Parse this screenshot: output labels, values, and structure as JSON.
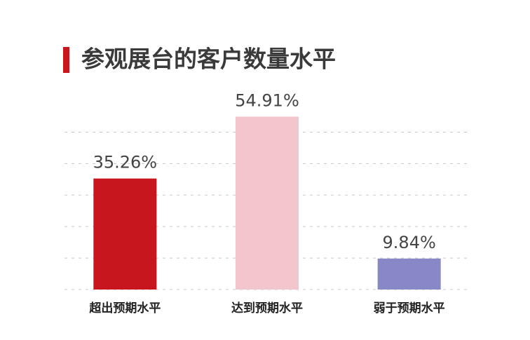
{
  "chart_data": {
    "type": "bar",
    "title": "参观展台的客户数量水平",
    "categories": [
      "超出预期水平",
      "达到预期水平",
      "弱于预期水平"
    ],
    "values": [
      35.26,
      54.91,
      9.84
    ],
    "value_labels": [
      "35.26%",
      "54.91%",
      "9.84%"
    ],
    "colors": [
      "#c8161e",
      "#f3c5cd",
      "#8888c6"
    ],
    "ylim": [
      0,
      55
    ],
    "yticks": [
      0,
      10,
      20,
      30,
      40,
      50
    ],
    "grid": true
  }
}
